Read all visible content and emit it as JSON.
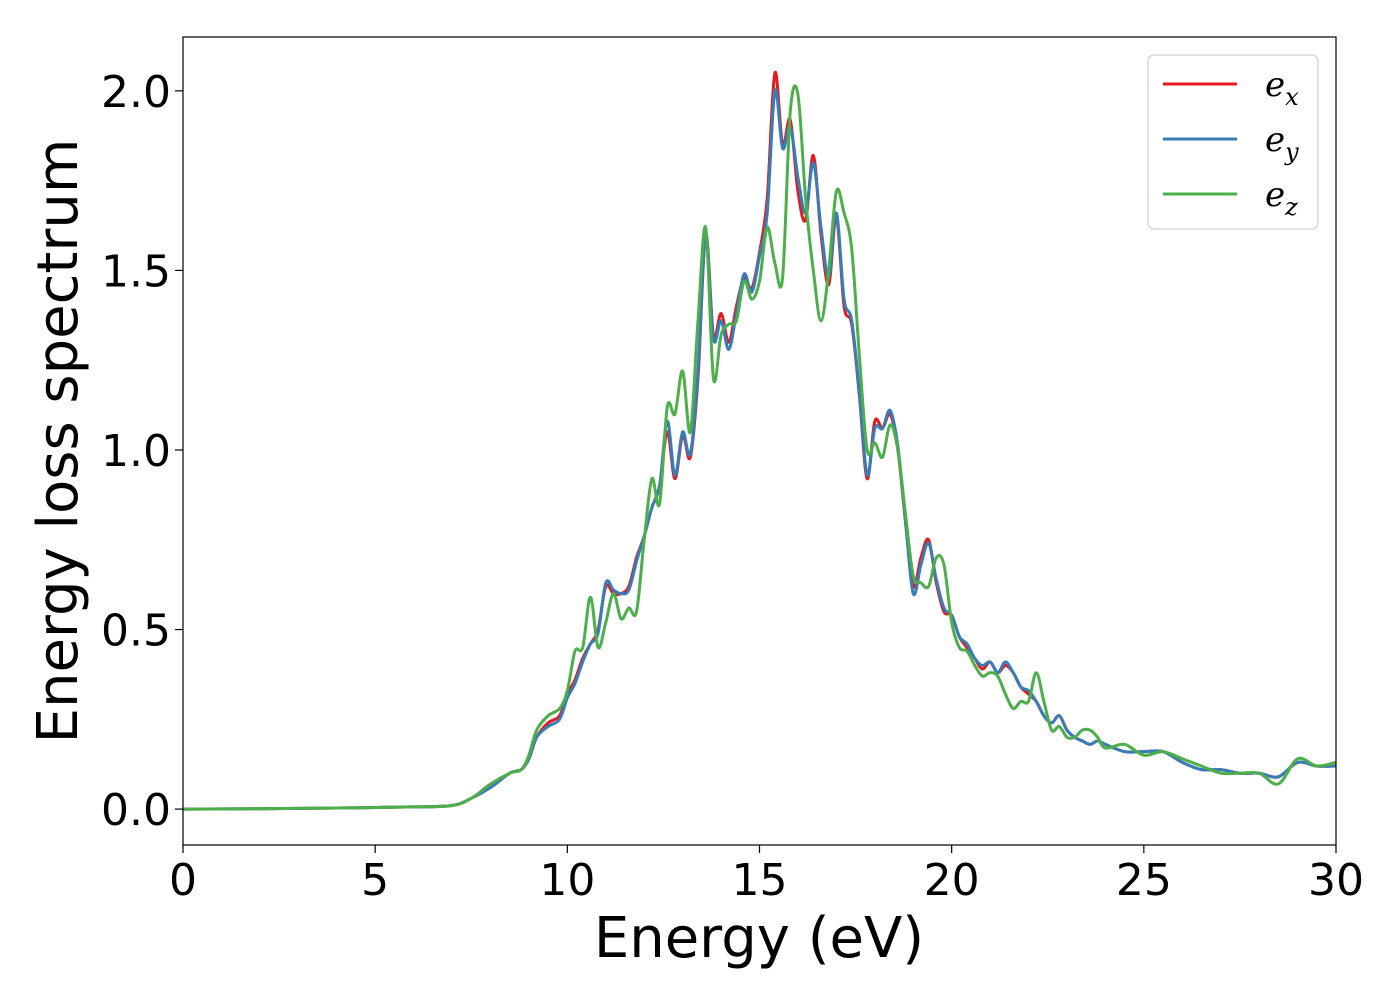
{
  "chart_data": {
    "type": "line",
    "title": "",
    "xlabel": "Energy (eV)",
    "ylabel": "Energy loss spectrum",
    "xlim": [
      0,
      30
    ],
    "ylim": [
      -0.1,
      2.15
    ],
    "xticks": [
      0,
      5,
      10,
      15,
      20,
      25,
      30
    ],
    "yticks": [
      0.0,
      0.5,
      1.0,
      1.5,
      2.0
    ],
    "xtick_labels": [
      "0",
      "5",
      "10",
      "15",
      "20",
      "25",
      "30"
    ],
    "ytick_labels": [
      "0.0",
      "0.5",
      "1.0",
      "1.5",
      "2.0"
    ],
    "grid": false,
    "legend_position": "top-right",
    "series": [
      {
        "name": "e_x",
        "legend_main": "e",
        "legend_sub": "x",
        "color": "#e41a1c",
        "x": [
          0,
          2,
          4,
          6,
          7,
          7.5,
          8,
          8.5,
          8.8,
          9,
          9.2,
          9.5,
          9.8,
          10,
          10.2,
          10.4,
          10.6,
          10.8,
          11,
          11.2,
          11.4,
          11.6,
          11.8,
          12,
          12.2,
          12.4,
          12.6,
          12.8,
          13,
          13.2,
          13.4,
          13.6,
          13.8,
          14,
          14.2,
          14.4,
          14.6,
          14.8,
          15,
          15.2,
          15.4,
          15.6,
          15.8,
          16,
          16.2,
          16.4,
          16.6,
          16.8,
          17,
          17.2,
          17.4,
          17.6,
          17.8,
          18,
          18.2,
          18.4,
          18.6,
          18.8,
          19,
          19.2,
          19.4,
          19.6,
          19.8,
          20,
          20.2,
          20.4,
          20.6,
          20.8,
          21,
          21.2,
          21.4,
          21.6,
          21.8,
          22,
          22.2,
          22.4,
          22.6,
          22.8,
          23,
          23.2,
          23.4,
          23.6,
          23.8,
          24,
          24.5,
          25,
          25.5,
          26,
          26.5,
          27,
          27.5,
          28,
          28.5,
          29,
          29.5,
          30
        ],
        "y": [
          0.0,
          0.001,
          0.003,
          0.006,
          0.01,
          0.03,
          0.06,
          0.1,
          0.11,
          0.14,
          0.2,
          0.24,
          0.26,
          0.32,
          0.36,
          0.42,
          0.46,
          0.5,
          0.62,
          0.6,
          0.6,
          0.62,
          0.7,
          0.76,
          0.84,
          0.9,
          1.05,
          0.92,
          1.04,
          0.98,
          1.2,
          1.6,
          1.32,
          1.38,
          1.3,
          1.4,
          1.48,
          1.45,
          1.55,
          1.7,
          2.05,
          1.85,
          1.92,
          1.72,
          1.64,
          1.82,
          1.6,
          1.46,
          1.65,
          1.4,
          1.35,
          1.15,
          0.92,
          1.08,
          1.06,
          1.1,
          1.0,
          0.8,
          0.62,
          0.7,
          0.75,
          0.63,
          0.55,
          0.54,
          0.48,
          0.45,
          0.42,
          0.39,
          0.41,
          0.38,
          0.4,
          0.38,
          0.34,
          0.32,
          0.3,
          0.26,
          0.24,
          0.26,
          0.22,
          0.2,
          0.19,
          0.18,
          0.19,
          0.18,
          0.16,
          0.16,
          0.16,
          0.13,
          0.11,
          0.11,
          0.1,
          0.1,
          0.09,
          0.13,
          0.12,
          0.12
        ]
      },
      {
        "name": "e_y",
        "legend_main": "e",
        "legend_sub": "y",
        "color": "#377eb8",
        "x": [
          0,
          2,
          4,
          6,
          7,
          7.5,
          8,
          8.5,
          8.8,
          9,
          9.2,
          9.5,
          9.8,
          10,
          10.2,
          10.4,
          10.6,
          10.8,
          11,
          11.2,
          11.4,
          11.6,
          11.8,
          12,
          12.2,
          12.4,
          12.6,
          12.8,
          13,
          13.2,
          13.4,
          13.6,
          13.8,
          14,
          14.2,
          14.4,
          14.6,
          14.8,
          15,
          15.2,
          15.4,
          15.6,
          15.8,
          16,
          16.2,
          16.4,
          16.6,
          16.8,
          17,
          17.2,
          17.4,
          17.6,
          17.8,
          18,
          18.2,
          18.4,
          18.6,
          18.8,
          19,
          19.2,
          19.4,
          19.6,
          19.8,
          20,
          20.2,
          20.4,
          20.6,
          20.8,
          21,
          21.2,
          21.4,
          21.6,
          21.8,
          22,
          22.2,
          22.4,
          22.6,
          22.8,
          23,
          23.2,
          23.4,
          23.6,
          23.8,
          24,
          24.5,
          25,
          25.5,
          26,
          26.5,
          27,
          27.5,
          28,
          28.5,
          29,
          29.5,
          30
        ],
        "y": [
          0.0,
          0.001,
          0.003,
          0.006,
          0.01,
          0.03,
          0.06,
          0.1,
          0.11,
          0.14,
          0.2,
          0.23,
          0.25,
          0.31,
          0.35,
          0.41,
          0.46,
          0.49,
          0.63,
          0.61,
          0.6,
          0.61,
          0.69,
          0.76,
          0.84,
          0.9,
          1.08,
          0.93,
          1.05,
          0.99,
          1.22,
          1.6,
          1.31,
          1.36,
          1.28,
          1.38,
          1.49,
          1.44,
          1.54,
          1.66,
          2.0,
          1.84,
          1.9,
          1.76,
          1.66,
          1.8,
          1.62,
          1.48,
          1.66,
          1.42,
          1.36,
          1.16,
          0.93,
          1.06,
          1.06,
          1.11,
          1.01,
          0.8,
          0.6,
          0.68,
          0.74,
          0.64,
          0.56,
          0.54,
          0.48,
          0.46,
          0.42,
          0.4,
          0.41,
          0.38,
          0.41,
          0.38,
          0.34,
          0.33,
          0.3,
          0.26,
          0.24,
          0.26,
          0.22,
          0.2,
          0.19,
          0.18,
          0.19,
          0.18,
          0.16,
          0.16,
          0.16,
          0.13,
          0.11,
          0.11,
          0.1,
          0.1,
          0.09,
          0.13,
          0.12,
          0.12
        ]
      },
      {
        "name": "e_z",
        "legend_main": "e",
        "legend_sub": "z",
        "color": "#4daf4a",
        "x": [
          0,
          2,
          4,
          6,
          7,
          7.5,
          8,
          8.5,
          8.8,
          9,
          9.2,
          9.5,
          9.8,
          10,
          10.2,
          10.4,
          10.6,
          10.8,
          11,
          11.2,
          11.4,
          11.6,
          11.8,
          12,
          12.2,
          12.4,
          12.6,
          12.8,
          13,
          13.2,
          13.4,
          13.6,
          13.8,
          14,
          14.2,
          14.4,
          14.6,
          14.8,
          15,
          15.2,
          15.4,
          15.6,
          15.8,
          16,
          16.2,
          16.4,
          16.6,
          16.8,
          17,
          17.2,
          17.4,
          17.6,
          17.8,
          18,
          18.2,
          18.4,
          18.6,
          18.8,
          19,
          19.2,
          19.4,
          19.6,
          19.8,
          20,
          20.2,
          20.4,
          20.6,
          20.8,
          21,
          21.2,
          21.4,
          21.6,
          21.8,
          22,
          22.2,
          22.4,
          22.6,
          22.8,
          23,
          23.2,
          23.4,
          23.6,
          23.8,
          24,
          24.5,
          25,
          25.5,
          26,
          26.5,
          27,
          27.5,
          28,
          28.5,
          29,
          29.5,
          30
        ],
        "y": [
          0.0,
          0.001,
          0.003,
          0.006,
          0.01,
          0.03,
          0.07,
          0.1,
          0.11,
          0.15,
          0.22,
          0.26,
          0.28,
          0.33,
          0.44,
          0.45,
          0.59,
          0.45,
          0.52,
          0.6,
          0.53,
          0.56,
          0.55,
          0.75,
          0.92,
          0.85,
          1.12,
          1.1,
          1.22,
          1.05,
          1.36,
          1.62,
          1.2,
          1.32,
          1.35,
          1.36,
          1.47,
          1.42,
          1.47,
          1.62,
          1.52,
          1.48,
          1.94,
          1.99,
          1.7,
          1.5,
          1.36,
          1.5,
          1.72,
          1.66,
          1.56,
          1.26,
          1.0,
          1.02,
          0.98,
          1.07,
          1.0,
          0.82,
          0.65,
          0.63,
          0.62,
          0.7,
          0.68,
          0.52,
          0.45,
          0.44,
          0.4,
          0.37,
          0.38,
          0.37,
          0.32,
          0.28,
          0.3,
          0.3,
          0.38,
          0.3,
          0.22,
          0.23,
          0.2,
          0.2,
          0.22,
          0.22,
          0.2,
          0.17,
          0.18,
          0.15,
          0.16,
          0.14,
          0.12,
          0.1,
          0.1,
          0.1,
          0.07,
          0.14,
          0.12,
          0.13
        ]
      }
    ]
  }
}
